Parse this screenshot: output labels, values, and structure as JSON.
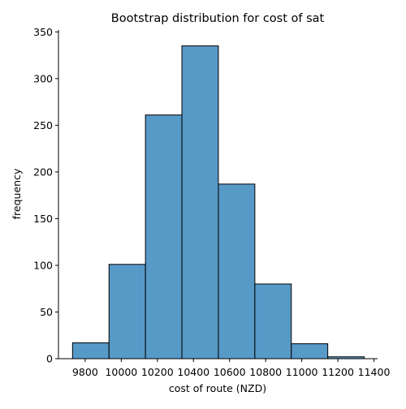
{
  "chart_data": {
    "type": "bar",
    "title": "Bootstrap distribution for cost of sat",
    "xlabel": "cost of route (NZD)",
    "ylabel": "frequency",
    "bins": [
      {
        "x0": 9730,
        "x1": 9932,
        "count": 17
      },
      {
        "x0": 9932,
        "x1": 10134,
        "count": 101
      },
      {
        "x0": 10134,
        "x1": 10336,
        "count": 261
      },
      {
        "x0": 10336,
        "x1": 10538,
        "count": 335
      },
      {
        "x0": 10538,
        "x1": 10740,
        "count": 187
      },
      {
        "x0": 10740,
        "x1": 10942,
        "count": 80
      },
      {
        "x0": 10942,
        "x1": 11144,
        "count": 16
      },
      {
        "x0": 11144,
        "x1": 11346,
        "count": 2
      }
    ],
    "xticks": [
      9800,
      10000,
      10200,
      10400,
      10600,
      10800,
      11000,
      11200,
      11400
    ],
    "yticks": [
      0,
      50,
      100,
      150,
      200,
      250,
      300,
      350
    ],
    "xlim": [
      9652,
      11420
    ],
    "ylim": [
      0,
      352
    ],
    "grid": false,
    "colors": {
      "bar_fill": "#5799c7",
      "bar_edge": "#000000",
      "axis": "#000000"
    }
  }
}
